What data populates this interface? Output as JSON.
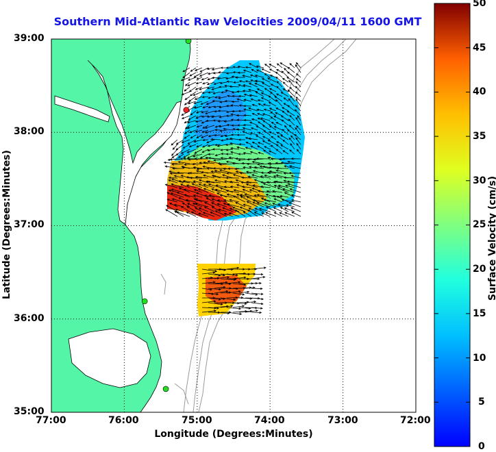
{
  "title": "Southern Mid-Atlantic Raw Velocities 2009/04/11 1600 GMT",
  "xlabel": "Longitude (Degrees:Minutes)",
  "ylabel": "Latitude (Degrees:Minutes)",
  "colorbar_label": "Surface Velocity (cm/s)",
  "x_ticks": [
    "77:00",
    "76:00",
    "75:00",
    "74:00",
    "73:00",
    "72:00"
  ],
  "y_ticks": [
    "39:00",
    "38:00",
    "37:00",
    "36:00",
    "35:00"
  ],
  "colorbar_ticks": [
    "50",
    "45",
    "40",
    "35",
    "30",
    "25",
    "20",
    "15",
    "10",
    "5",
    "0"
  ],
  "colors": {
    "land": "#55f5a8",
    "title": "#1414e6",
    "grid": "#000000",
    "bathymetry": "#9a9a9a",
    "station": "#22dd22",
    "station_alt": "#ee2222"
  },
  "map": {
    "lon_range": [
      -77,
      -72
    ],
    "lat_range": [
      35,
      39
    ],
    "colorbar_range": [
      0,
      50
    ],
    "grid": "dotted",
    "colormap": "jet"
  },
  "stations": [
    {
      "lon": -75.12,
      "lat": 38.98,
      "color": "green"
    },
    {
      "lon": -75.15,
      "lat": 38.24,
      "color": "red"
    },
    {
      "lon": -75.72,
      "lat": 36.19,
      "color": "green"
    },
    {
      "lon": -75.43,
      "lat": 35.25,
      "color": "green"
    }
  ]
}
